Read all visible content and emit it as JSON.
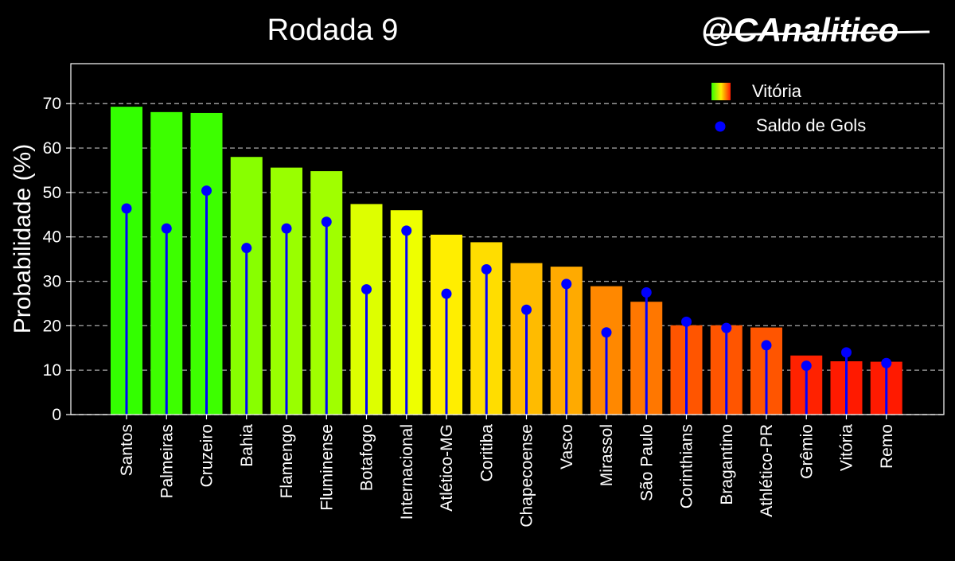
{
  "chart_data": {
    "type": "bar",
    "title": "Rodada 9",
    "brand": "@CAnalitico",
    "ylabel": "Probabilidade (%)",
    "xlabel": "",
    "ylim": [
      0,
      79
    ],
    "yticks": [
      0,
      10,
      20,
      30,
      40,
      50,
      60,
      70
    ],
    "grid": "horizontal-dashed",
    "legend_position": "top-right",
    "categories": [
      "Santos",
      "Palmeiras",
      "Cruzeiro",
      "Bahia",
      "Flamengo",
      "Fluminense",
      "Botafogo",
      "Internacional",
      "Atlético-MG",
      "Coritiba",
      "Chapecoense",
      "Vasco",
      "Mirassol",
      "São Paulo",
      "Corinthians",
      "Bragantino",
      "Athlético-PR",
      "Grêmio",
      "Vitória",
      "Remo"
    ],
    "series": [
      {
        "name": "Vitória",
        "kind": "bar",
        "values": [
          69.3,
          68.1,
          67.9,
          58.0,
          55.6,
          54.8,
          47.4,
          46.0,
          40.5,
          38.8,
          34.1,
          33.3,
          28.9,
          25.4,
          20.1,
          20.1,
          19.6,
          13.3,
          12.0,
          11.9
        ],
        "colors": [
          "#33ff00",
          "#3dff00",
          "#3dff00",
          "#88ff00",
          "#99ff00",
          "#a0ff00",
          "#ddff00",
          "#eeff00",
          "#ffee00",
          "#ffdd00",
          "#ffbb00",
          "#ffaa00",
          "#ff8800",
          "#ff7700",
          "#ff5500",
          "#ff5500",
          "#ff5500",
          "#ff2200",
          "#ff1a00",
          "#ff1a00"
        ]
      },
      {
        "name": "Saldo de Gols",
        "kind": "lollipop",
        "color": "#0000ff",
        "values": [
          46.4,
          41.9,
          50.4,
          37.5,
          41.9,
          43.4,
          28.2,
          41.4,
          27.2,
          32.7,
          23.6,
          29.4,
          18.5,
          27.5,
          20.9,
          19.5,
          15.6,
          11.0,
          14.0,
          11.6
        ]
      }
    ]
  }
}
